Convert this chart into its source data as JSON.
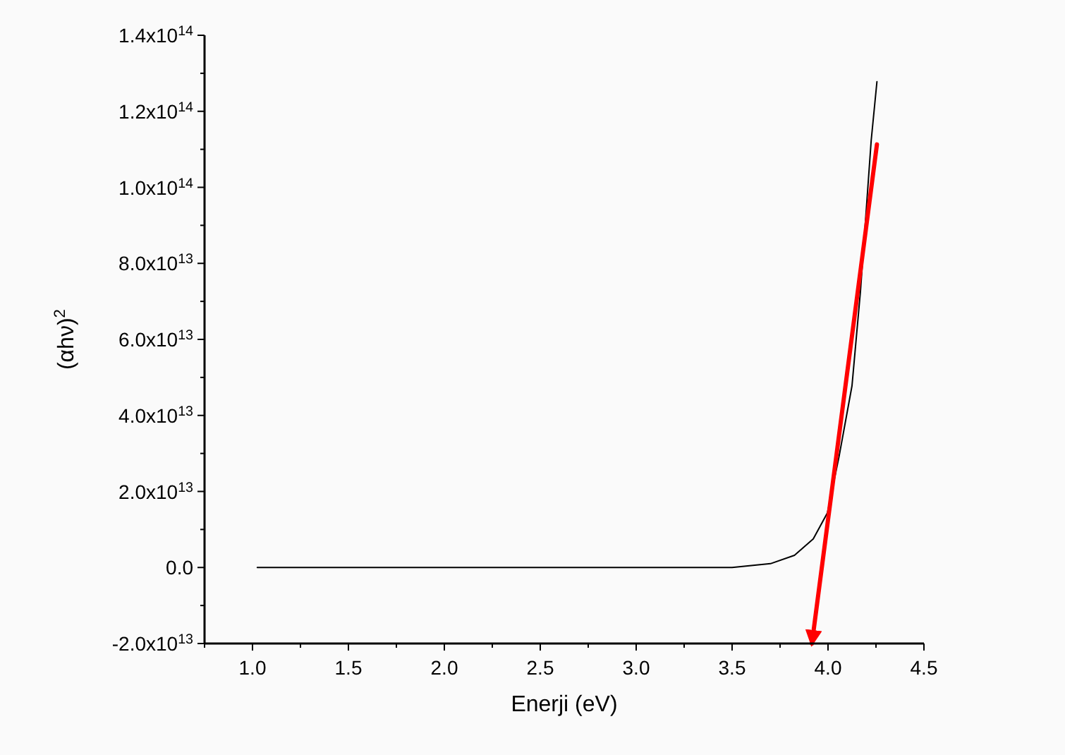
{
  "chart_data": {
    "type": "line",
    "xlabel": "Enerji (eV)",
    "ylabel": "(αhν)$^{2}$",
    "xlim": [
      0.75,
      4.5
    ],
    "xticks": [
      {
        "value": 0.75,
        "label": null
      },
      {
        "value": 1,
        "label": "1.0"
      },
      {
        "value": 1.25,
        "label": null
      },
      {
        "value": 1.5,
        "label": "1.5"
      },
      {
        "value": 1.75,
        "label": null
      },
      {
        "value": 2.0,
        "label": "2.0"
      },
      {
        "value": 2.25,
        "label": null
      },
      {
        "value": 2.5,
        "label": "2.5"
      },
      {
        "value": 2.75,
        "label": null
      },
      {
        "value": 3.0,
        "label": "3.0"
      },
      {
        "value": 3.25,
        "label": null
      },
      {
        "value": 3.5,
        "label": "3.5"
      },
      {
        "value": 3.75,
        "label": null
      },
      {
        "value": 4.0,
        "label": "4.0"
      },
      {
        "value": 4.25,
        "label": null
      },
      {
        "value": 4.5,
        "label": "4.5"
      }
    ],
    "ylim": [
      -20000000000000.0,
      140000000000000.0
    ],
    "yticks": [
      {
        "value": -20000000000000.0,
        "label": "-2.0x10$^{13}$"
      },
      {
        "value": -10000000000000.0,
        "label": null
      },
      {
        "value": 0,
        "label": "0.0"
      },
      {
        "value": 10000000000000.0,
        "label": null
      },
      {
        "value": 20000000000000.0,
        "label": "2.0x10$^{13}$"
      },
      {
        "value": 30000000000000.0,
        "label": null
      },
      {
        "value": 40000000000000.0,
        "label": "4.0x10$^{13}$"
      },
      {
        "value": 50000000000000.0,
        "label": null
      },
      {
        "value": 60000000000000.0,
        "label": "6.0x10$^{13}$"
      },
      {
        "value": 70000000000000.0,
        "label": null
      },
      {
        "value": 80000000000000.0,
        "label": "8.0x10$^{13}$"
      },
      {
        "value": 90000000000000.0,
        "label": null
      },
      {
        "value": 100000000000000.0,
        "label": "1.0x10$^{14}$"
      },
      {
        "value": 110000000000000.0,
        "label": null
      },
      {
        "value": 120000000000000.0,
        "label": "1.2x10$^{14}$"
      },
      {
        "value": 130000000000000.0,
        "label": null
      },
      {
        "value": 140000000000000.0,
        "label": "1.4x10$^{14}$"
      }
    ],
    "grid": false,
    "marker": "none",
    "series": [
      {
        "color": "#000000",
        "x": [
          1.025,
          1.5,
          2.0,
          2.5,
          3.0,
          3.5,
          3.7,
          3.825,
          3.923,
          3.997,
          4.058,
          4.125,
          4.169,
          4.225,
          4.255
        ],
        "values": [
          0,
          0,
          0,
          0,
          0,
          0,
          1000000000000.0,
          3200000000000.0,
          7500000000000.0,
          14400000000000.0,
          29300000000000.0,
          47800000000000.0,
          72600000000000.0,
          112300000000000.0,
          127800000000000.0
        ]
      },
      {
        "color": "#ff0000",
        "x": [
          4.255,
          3.916
        ],
        "values": [
          111300000000000.0,
          -20000000000000.0
        ]
      }
    ]
  }
}
